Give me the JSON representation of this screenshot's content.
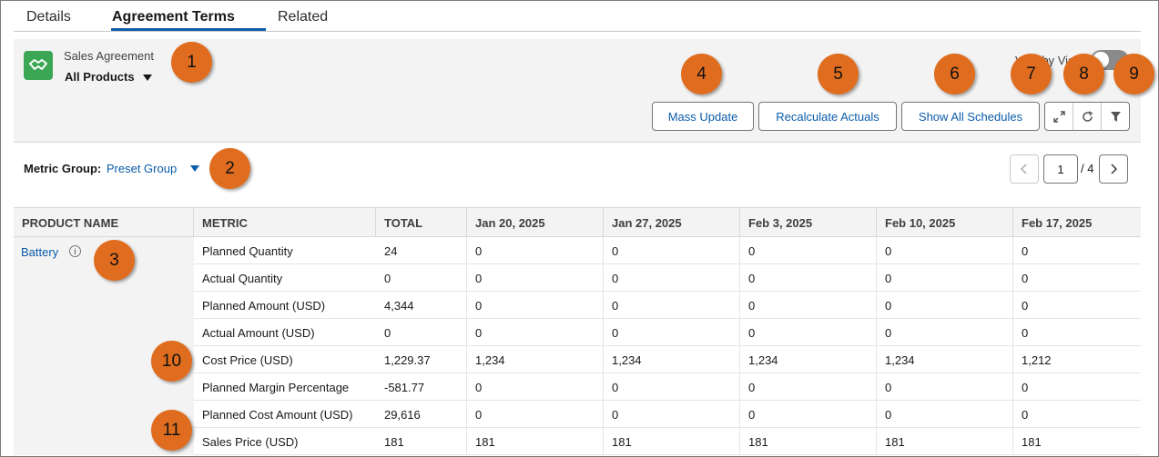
{
  "tabs": [
    {
      "label": "Details"
    },
    {
      "label": "Agreement Terms"
    },
    {
      "label": "Related"
    }
  ],
  "header": {
    "subtitle": "Sales Agreement",
    "title": "All Products",
    "toggle_label": "Vary by View",
    "icon": "handshake-icon"
  },
  "toolbar": {
    "mass_update": "Mass Update",
    "recalculate": "Recalculate Actuals",
    "show_all": "Show All Schedules",
    "icons": [
      "expand-icon",
      "refresh-icon",
      "filter-icon"
    ]
  },
  "metric_group": {
    "label": "Metric Group:",
    "value": "Preset Group"
  },
  "pager": {
    "current": "1",
    "total": "/ 4"
  },
  "table": {
    "columns": [
      "PRODUCT NAME",
      "METRIC",
      "TOTAL",
      "Jan 20, 2025",
      "Jan 27, 2025",
      "Feb 3, 2025",
      "Feb 10, 2025",
      "Feb 17, 2025"
    ],
    "product": "Battery",
    "rows": [
      {
        "metric": "Planned Quantity",
        "total": "24",
        "values": [
          "0",
          "0",
          "0",
          "0",
          "0"
        ]
      },
      {
        "metric": "Actual Quantity",
        "total": "0",
        "values": [
          "0",
          "0",
          "0",
          "0",
          "0"
        ]
      },
      {
        "metric": "Planned Amount (USD)",
        "total": "4,344",
        "values": [
          "0",
          "0",
          "0",
          "0",
          "0"
        ]
      },
      {
        "metric": "Actual Amount (USD)",
        "total": "0",
        "values": [
          "0",
          "0",
          "0",
          "0",
          "0"
        ]
      },
      {
        "metric": "Cost Price (USD)",
        "total": "1,229.37",
        "values": [
          "1,234",
          "1,234",
          "1,234",
          "1,234",
          "1,212"
        ]
      },
      {
        "metric": "Planned Margin Percentage",
        "total": "-581.77",
        "values": [
          "0",
          "0",
          "0",
          "0",
          "0"
        ]
      },
      {
        "metric": "Planned Cost Amount (USD)",
        "total": "29,616",
        "values": [
          "0",
          "0",
          "0",
          "0",
          "0"
        ]
      },
      {
        "metric": "Sales Price (USD)",
        "total": "181",
        "values": [
          "181",
          "181",
          "181",
          "181",
          "181"
        ]
      }
    ]
  },
  "markers": [
    "1",
    "2",
    "3",
    "4",
    "5",
    "6",
    "7",
    "8",
    "9",
    "10",
    "11"
  ],
  "colors": {
    "accent": "#0b5cab",
    "app_icon": "#3ba755",
    "marker": "#e06d1f"
  }
}
